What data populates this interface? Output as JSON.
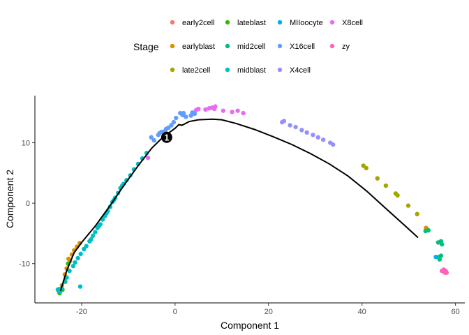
{
  "chart_data": {
    "type": "scatter",
    "xlabel": "Component 1",
    "ylabel": "Component 2",
    "xlim": [
      -30,
      62
    ],
    "ylim": [
      -16.5,
      17.8
    ],
    "x_ticks": [
      -20,
      0,
      20,
      40,
      60
    ],
    "y_ticks": [
      -10,
      0,
      10
    ],
    "grid": false,
    "legend": {
      "title": "Stage",
      "placement": "top"
    },
    "series": [
      {
        "name": "early2cell",
        "color": "#F8766D",
        "points": [
          [
            57.4,
            -11.3
          ],
          [
            57.8,
            -11.5
          ]
        ]
      },
      {
        "name": "earlyblast",
        "color": "#D89000",
        "points": [
          [
            -24.8,
            -14.2
          ],
          [
            -24.2,
            -13.6
          ],
          [
            -23.6,
            -11.8
          ],
          [
            -23.2,
            -10.8
          ],
          [
            -22.5,
            -9.6
          ],
          [
            -22.1,
            -8.5
          ],
          [
            -21.6,
            -7.8
          ],
          [
            -21.0,
            -7.2
          ],
          [
            -20.4,
            -6.6
          ],
          [
            -24.9,
            -14.6
          ],
          [
            53.7,
            -4.1
          ],
          [
            -22.8,
            -9.2
          ]
        ]
      },
      {
        "name": "late2cell",
        "color": "#A3A500",
        "points": [
          [
            40.3,
            6.2
          ],
          [
            40.9,
            5.8
          ],
          [
            43.3,
            4.1
          ],
          [
            45.1,
            2.9
          ],
          [
            47.2,
            1.6
          ],
          [
            47.6,
            1.3
          ],
          [
            49.9,
            -0.4
          ],
          [
            51.8,
            -1.8
          ],
          [
            54.1,
            -4.4
          ]
        ]
      },
      {
        "name": "lateblast",
        "color": "#39B600",
        "points": [
          [
            -24.7,
            -14.9
          ],
          [
            -24.1,
            -14.3
          ],
          [
            -23.5,
            -13.0
          ],
          [
            -22.9,
            -10.0
          ]
        ]
      },
      {
        "name": "mid2cell",
        "color": "#00BF7D",
        "points": [
          [
            53.6,
            -4.6
          ],
          [
            54.2,
            -4.5
          ],
          [
            56.3,
            -6.5
          ],
          [
            56.9,
            -6.3
          ],
          [
            57.1,
            -6.8
          ],
          [
            56.4,
            -8.9
          ],
          [
            56.6,
            -9.3
          ],
          [
            56.9,
            -8.7
          ]
        ]
      },
      {
        "name": "midblast",
        "color": "#00BFC4",
        "points": [
          [
            -25.1,
            -14.3
          ],
          [
            -24.6,
            -14.7
          ],
          [
            -24.3,
            -14.1
          ],
          [
            -23.6,
            -12.9
          ],
          [
            -23.2,
            -12.3
          ],
          [
            -22.6,
            -11.2
          ],
          [
            -21.8,
            -10.4
          ],
          [
            -20.3,
            -13.8
          ],
          [
            -21.4,
            -9.8
          ],
          [
            -20.8,
            -9.1
          ],
          [
            -20.2,
            -8.4
          ],
          [
            -19.5,
            -7.6
          ],
          [
            -19.0,
            -7.1
          ],
          [
            -18.3,
            -6.3
          ],
          [
            -17.6,
            -5.4
          ],
          [
            -17.1,
            -4.8
          ],
          [
            -16.6,
            -4.1
          ],
          [
            -16.0,
            -3.5
          ],
          [
            -15.5,
            -2.7
          ],
          [
            -15.0,
            -2.1
          ],
          [
            -14.4,
            -1.3
          ],
          [
            -13.9,
            -0.6
          ],
          [
            -13.4,
            0.2
          ],
          [
            -12.8,
            0.9
          ],
          [
            -12.2,
            1.7
          ],
          [
            -11.7,
            2.5
          ],
          [
            -11.0,
            3.2
          ],
          [
            -10.4,
            3.8
          ],
          [
            -9.6,
            4.6
          ],
          [
            -8.8,
            5.6
          ],
          [
            -7.9,
            6.5
          ],
          [
            -7.0,
            7.4
          ],
          [
            -6.1,
            8.3
          ],
          [
            -18.0,
            -6.0
          ],
          [
            -16.3,
            -3.8
          ],
          [
            -14.7,
            -1.7
          ],
          [
            -13.1,
            0.5
          ],
          [
            -11.3,
            2.9
          ]
        ]
      },
      {
        "name": "MIIoocyte",
        "color": "#00B0F6",
        "points": [
          [
            55.8,
            -8.9
          ]
        ]
      },
      {
        "name": "X16cell",
        "color": "#619CFF",
        "points": [
          [
            -4.5,
            10.4
          ],
          [
            -3.6,
            11.3
          ],
          [
            -2.9,
            11.8
          ],
          [
            -2.1,
            12.0
          ],
          [
            -1.4,
            12.5
          ],
          [
            -0.8,
            12.9
          ],
          [
            -0.3,
            13.4
          ],
          [
            0.2,
            14.1
          ],
          [
            1.1,
            14.9
          ],
          [
            1.6,
            14.6
          ],
          [
            2.3,
            14.3
          ],
          [
            3.7,
            15.0
          ],
          [
            3.4,
            14.5
          ],
          [
            4.2,
            14.8
          ],
          [
            -1.9,
            12.3
          ],
          [
            -3.3,
            11.6
          ],
          [
            -5.1,
            10.9
          ],
          [
            1.8,
            14.9
          ]
        ]
      },
      {
        "name": "X4cell",
        "color": "#9590FF",
        "points": [
          [
            22.9,
            13.4
          ],
          [
            23.3,
            13.6
          ],
          [
            24.6,
            12.9
          ],
          [
            25.8,
            12.6
          ],
          [
            27.1,
            12.1
          ],
          [
            28.2,
            11.7
          ],
          [
            29.5,
            11.3
          ],
          [
            30.6,
            10.9
          ],
          [
            31.7,
            10.5
          ],
          [
            33.2,
            10.0
          ],
          [
            33.8,
            9.7
          ]
        ]
      },
      {
        "name": "X8cell",
        "color": "#E76BF3",
        "points": [
          [
            4.5,
            15.4
          ],
          [
            5.0,
            15.6
          ],
          [
            6.5,
            15.5
          ],
          [
            7.3,
            15.7
          ],
          [
            7.9,
            15.8
          ],
          [
            8.4,
            15.6
          ],
          [
            8.6,
            16.0
          ],
          [
            10.3,
            15.3
          ],
          [
            12.2,
            15.1
          ],
          [
            13.4,
            15.3
          ],
          [
            14.6,
            14.9
          ],
          [
            -5.8,
            7.5
          ]
        ]
      },
      {
        "name": "zy",
        "color": "#FF62BC",
        "points": [
          [
            57.1,
            -11.2
          ],
          [
            57.5,
            -11.0
          ],
          [
            57.7,
            -11.4
          ],
          [
            57.9,
            -11.2
          ],
          [
            58.1,
            -11.5
          ]
        ]
      }
    ],
    "trajectory": [
      [
        -24.5,
        -14.5
      ],
      [
        -23.2,
        -11.2
      ],
      [
        -21.6,
        -8.2
      ],
      [
        -20.0,
        -6.5
      ],
      [
        -17.0,
        -3.7
      ],
      [
        -14.0,
        -0.5
      ],
      [
        -11.0,
        2.9
      ],
      [
        -8.0,
        6.1
      ],
      [
        -5.0,
        9.1
      ],
      [
        -2.5,
        11.0
      ],
      [
        0.0,
        12.4
      ],
      [
        0.8,
        13.0
      ],
      [
        1.5,
        12.9
      ],
      [
        3.0,
        13.5
      ],
      [
        5.0,
        13.8
      ],
      [
        8.0,
        13.9
      ],
      [
        10.0,
        13.8
      ],
      [
        13.0,
        13.2
      ],
      [
        17.0,
        12.2
      ],
      [
        21.0,
        11.0
      ],
      [
        25.0,
        9.7
      ],
      [
        29.0,
        8.2
      ],
      [
        33.0,
        6.5
      ],
      [
        37.0,
        4.5
      ],
      [
        41.0,
        2.0
      ],
      [
        45.0,
        -0.8
      ],
      [
        49.0,
        -3.6
      ],
      [
        52.0,
        -5.7
      ]
    ],
    "root_marker": {
      "label": "1",
      "x": -1.8,
      "y": 10.9
    }
  }
}
